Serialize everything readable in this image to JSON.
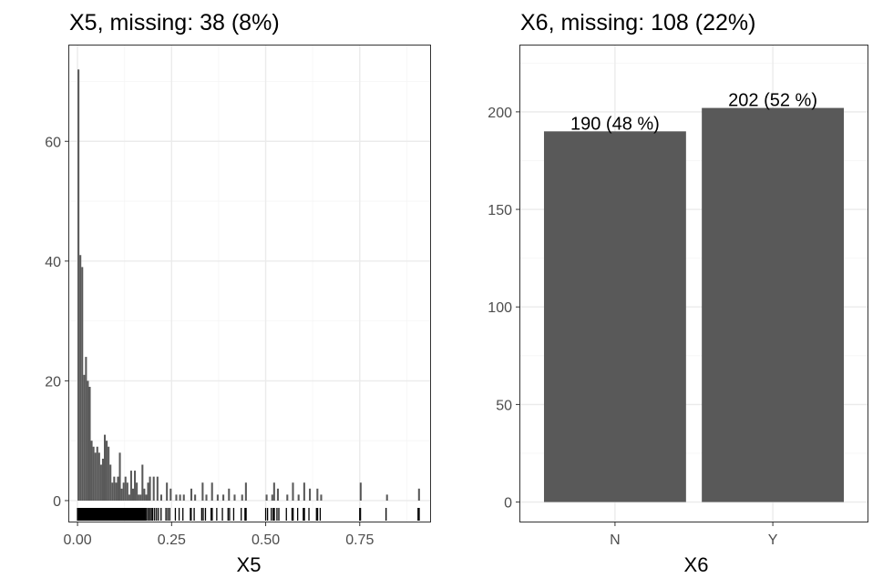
{
  "chart_data": [
    {
      "type": "bar",
      "subtype": "histogram",
      "title": "X5, missing: 38 (8%)",
      "xlabel": "X5",
      "ylabel": "",
      "xlim": [
        -0.022,
        0.937
      ],
      "ylim": [
        -3.5,
        76
      ],
      "x_ticks": [
        0.0,
        0.25,
        0.5,
        0.75
      ],
      "x_tick_labels": [
        "0.00",
        "0.25",
        "0.50",
        "0.75"
      ],
      "y_ticks": [
        0,
        20,
        40,
        60
      ],
      "y_tick_labels": [
        "0",
        "20",
        "40",
        "60"
      ],
      "grid": true,
      "bin_width": 0.005,
      "bins": [
        [
          0.0,
          72
        ],
        [
          0.005,
          41
        ],
        [
          0.01,
          39
        ],
        [
          0.015,
          21
        ],
        [
          0.02,
          24
        ],
        [
          0.025,
          20
        ],
        [
          0.03,
          19
        ],
        [
          0.035,
          10
        ],
        [
          0.04,
          9
        ],
        [
          0.045,
          8
        ],
        [
          0.05,
          9
        ],
        [
          0.055,
          8
        ],
        [
          0.06,
          6
        ],
        [
          0.065,
          7
        ],
        [
          0.07,
          11
        ],
        [
          0.075,
          10
        ],
        [
          0.08,
          9
        ],
        [
          0.085,
          6
        ],
        [
          0.09,
          3
        ],
        [
          0.095,
          4
        ],
        [
          0.1,
          3
        ],
        [
          0.105,
          4
        ],
        [
          0.11,
          8
        ],
        [
          0.115,
          2
        ],
        [
          0.12,
          3
        ],
        [
          0.125,
          4
        ],
        [
          0.13,
          3
        ],
        [
          0.135,
          1
        ],
        [
          0.14,
          5
        ],
        [
          0.145,
          2
        ],
        [
          0.15,
          5
        ],
        [
          0.155,
          3
        ],
        [
          0.16,
          1
        ],
        [
          0.165,
          1
        ],
        [
          0.17,
          6
        ],
        [
          0.175,
          2
        ],
        [
          0.18,
          1
        ],
        [
          0.185,
          3
        ],
        [
          0.19,
          4
        ],
        [
          0.2,
          4
        ],
        [
          0.21,
          4
        ],
        [
          0.22,
          1
        ],
        [
          0.235,
          3
        ],
        [
          0.245,
          2
        ],
        [
          0.26,
          1
        ],
        [
          0.27,
          1
        ],
        [
          0.28,
          1
        ],
        [
          0.3,
          2
        ],
        [
          0.31,
          1
        ],
        [
          0.33,
          3
        ],
        [
          0.34,
          1
        ],
        [
          0.355,
          3
        ],
        [
          0.37,
          1
        ],
        [
          0.385,
          1
        ],
        [
          0.4,
          2
        ],
        [
          0.415,
          1
        ],
        [
          0.435,
          1
        ],
        [
          0.445,
          3
        ],
        [
          0.5,
          1
        ],
        [
          0.515,
          1
        ],
        [
          0.52,
          3
        ],
        [
          0.53,
          2
        ],
        [
          0.555,
          1
        ],
        [
          0.57,
          3
        ],
        [
          0.585,
          1
        ],
        [
          0.6,
          3
        ],
        [
          0.615,
          2
        ],
        [
          0.635,
          2
        ],
        [
          0.645,
          1
        ],
        [
          0.75,
          3
        ],
        [
          0.82,
          1
        ],
        [
          0.905,
          2
        ]
      ],
      "rug_values": [
        0.0,
        0.002,
        0.004,
        0.006,
        0.008,
        0.01,
        0.012,
        0.014,
        0.016,
        0.018,
        0.02,
        0.022,
        0.024,
        0.026,
        0.028,
        0.03,
        0.032,
        0.034,
        0.036,
        0.038,
        0.04,
        0.042,
        0.044,
        0.046,
        0.048,
        0.05,
        0.052,
        0.054,
        0.056,
        0.058,
        0.06,
        0.062,
        0.064,
        0.066,
        0.068,
        0.07,
        0.072,
        0.074,
        0.076,
        0.078,
        0.08,
        0.082,
        0.084,
        0.086,
        0.088,
        0.09,
        0.092,
        0.094,
        0.096,
        0.098,
        0.1,
        0.102,
        0.104,
        0.106,
        0.108,
        0.11,
        0.112,
        0.114,
        0.116,
        0.118,
        0.12,
        0.122,
        0.124,
        0.126,
        0.128,
        0.13,
        0.132,
        0.134,
        0.136,
        0.138,
        0.14,
        0.142,
        0.144,
        0.146,
        0.148,
        0.15,
        0.152,
        0.154,
        0.156,
        0.158,
        0.16,
        0.162,
        0.164,
        0.166,
        0.168,
        0.17,
        0.172,
        0.174,
        0.176,
        0.178,
        0.18,
        0.182,
        0.186,
        0.19,
        0.194,
        0.198,
        0.2,
        0.205,
        0.21,
        0.215,
        0.222,
        0.235,
        0.24,
        0.245,
        0.26,
        0.27,
        0.28,
        0.3,
        0.302,
        0.31,
        0.33,
        0.334,
        0.34,
        0.355,
        0.358,
        0.37,
        0.385,
        0.4,
        0.404,
        0.415,
        0.435,
        0.445,
        0.448,
        0.5,
        0.505,
        0.515,
        0.52,
        0.523,
        0.53,
        0.535,
        0.555,
        0.57,
        0.573,
        0.585,
        0.6,
        0.603,
        0.615,
        0.635,
        0.638,
        0.645,
        0.75,
        0.752,
        0.82,
        0.905,
        0.908
      ]
    },
    {
      "type": "bar",
      "title": "X6, missing: 108 (22%)",
      "xlabel": "X6",
      "ylabel": "",
      "categories": [
        "N",
        "Y"
      ],
      "values": [
        190,
        202
      ],
      "data_labels": [
        "190 (48 %)",
        "202 (52 %)"
      ],
      "ylim": [
        -10,
        234
      ],
      "y_ticks": [
        0,
        50,
        100,
        150,
        200
      ],
      "y_tick_labels": [
        "0",
        "50",
        "100",
        "150",
        "200"
      ],
      "grid": true
    }
  ],
  "colors": {
    "bar_fill": "#595959",
    "rug": "#000000",
    "panel_border": "#333333",
    "grid_major": "#ebebeb",
    "grid_minor": "#f5f5f5",
    "tick_text": "#4d4d4d"
  }
}
